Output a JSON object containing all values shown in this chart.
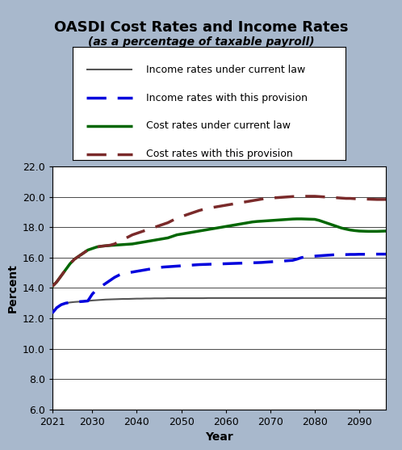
{
  "title": "OASDI Cost Rates and Income Rates",
  "subtitle": "(as a percentage of taxable payroll)",
  "xlabel": "Year",
  "ylabel": "Percent",
  "background_color": "#a8b8cc",
  "plot_bg_color": "#ffffff",
  "ylim": [
    6.0,
    22.0
  ],
  "yticks": [
    6.0,
    8.0,
    10.0,
    12.0,
    14.0,
    16.0,
    18.0,
    20.0,
    22.0
  ],
  "xticks": [
    2021,
    2030,
    2040,
    2050,
    2060,
    2070,
    2080,
    2090
  ],
  "years": [
    2021,
    2022,
    2023,
    2024,
    2025,
    2026,
    2027,
    2028,
    2029,
    2030,
    2031,
    2032,
    2033,
    2034,
    2035,
    2036,
    2037,
    2038,
    2039,
    2040,
    2041,
    2042,
    2043,
    2044,
    2045,
    2046,
    2047,
    2048,
    2049,
    2050,
    2051,
    2052,
    2053,
    2054,
    2055,
    2056,
    2057,
    2058,
    2059,
    2060,
    2061,
    2062,
    2063,
    2064,
    2065,
    2066,
    2067,
    2068,
    2069,
    2070,
    2071,
    2072,
    2073,
    2074,
    2075,
    2076,
    2077,
    2078,
    2079,
    2080,
    2081,
    2082,
    2083,
    2084,
    2085,
    2086,
    2087,
    2088,
    2089,
    2090,
    2091,
    2092,
    2093,
    2094,
    2095,
    2096
  ],
  "income_current_law": [
    12.35,
    12.7,
    12.9,
    13.0,
    13.05,
    13.08,
    13.1,
    13.12,
    13.15,
    13.18,
    13.2,
    13.22,
    13.24,
    13.25,
    13.26,
    13.27,
    13.28,
    13.28,
    13.29,
    13.3,
    13.3,
    13.31,
    13.31,
    13.32,
    13.32,
    13.32,
    13.33,
    13.33,
    13.33,
    13.33,
    13.33,
    13.33,
    13.33,
    13.33,
    13.33,
    13.34,
    13.34,
    13.34,
    13.34,
    13.34,
    13.34,
    13.34,
    13.34,
    13.34,
    13.34,
    13.34,
    13.34,
    13.34,
    13.34,
    13.34,
    13.34,
    13.34,
    13.34,
    13.34,
    13.34,
    13.34,
    13.34,
    13.34,
    13.34,
    13.34,
    13.34,
    13.34,
    13.34,
    13.34,
    13.34,
    13.34,
    13.34,
    13.34,
    13.34,
    13.34,
    13.34,
    13.34,
    13.34,
    13.34,
    13.34,
    13.34
  ],
  "income_provision": [
    12.35,
    12.7,
    12.9,
    13.0,
    13.05,
    13.08,
    13.1,
    13.12,
    13.15,
    13.6,
    13.9,
    14.1,
    14.3,
    14.5,
    14.7,
    14.85,
    14.95,
    15.0,
    15.05,
    15.1,
    15.15,
    15.2,
    15.25,
    15.3,
    15.35,
    15.38,
    15.4,
    15.42,
    15.44,
    15.46,
    15.48,
    15.5,
    15.52,
    15.54,
    15.55,
    15.56,
    15.57,
    15.58,
    15.59,
    15.6,
    15.61,
    15.62,
    15.63,
    15.64,
    15.65,
    15.66,
    15.67,
    15.68,
    15.7,
    15.72,
    15.74,
    15.76,
    15.78,
    15.8,
    15.82,
    15.9,
    16.0,
    16.05,
    16.08,
    16.1,
    16.12,
    16.14,
    16.16,
    16.18,
    16.2,
    16.2,
    16.2,
    16.21,
    16.21,
    16.22,
    16.22,
    16.22,
    16.23,
    16.23,
    16.23,
    16.23
  ],
  "cost_current_law": [
    14.1,
    14.4,
    14.8,
    15.2,
    15.6,
    15.9,
    16.1,
    16.3,
    16.5,
    16.6,
    16.7,
    16.75,
    16.78,
    16.8,
    16.82,
    16.84,
    16.86,
    16.88,
    16.9,
    16.95,
    17.0,
    17.05,
    17.1,
    17.15,
    17.2,
    17.25,
    17.3,
    17.4,
    17.5,
    17.55,
    17.6,
    17.65,
    17.7,
    17.75,
    17.8,
    17.85,
    17.9,
    17.95,
    18.0,
    18.05,
    18.1,
    18.15,
    18.2,
    18.25,
    18.3,
    18.35,
    18.38,
    18.4,
    18.42,
    18.44,
    18.46,
    18.48,
    18.5,
    18.52,
    18.54,
    18.55,
    18.55,
    18.54,
    18.53,
    18.52,
    18.45,
    18.35,
    18.25,
    18.15,
    18.05,
    17.95,
    17.88,
    17.82,
    17.78,
    17.75,
    17.74,
    17.73,
    17.73,
    17.73,
    17.74,
    17.75
  ],
  "cost_provision": [
    14.1,
    14.4,
    14.8,
    15.2,
    15.6,
    15.9,
    16.1,
    16.3,
    16.5,
    16.6,
    16.7,
    16.75,
    16.78,
    16.82,
    16.9,
    17.05,
    17.2,
    17.35,
    17.5,
    17.6,
    17.7,
    17.8,
    17.9,
    18.0,
    18.1,
    18.2,
    18.3,
    18.45,
    18.6,
    18.7,
    18.8,
    18.9,
    19.0,
    19.1,
    19.18,
    19.25,
    19.3,
    19.35,
    19.4,
    19.45,
    19.5,
    19.55,
    19.6,
    19.65,
    19.7,
    19.75,
    19.8,
    19.85,
    19.9,
    19.92,
    19.94,
    19.96,
    19.98,
    20.0,
    20.02,
    20.03,
    20.04,
    20.04,
    20.04,
    20.04,
    20.02,
    20.0,
    19.98,
    19.96,
    19.94,
    19.92,
    19.9,
    19.9,
    19.88,
    19.87,
    19.86,
    19.85,
    19.84,
    19.83,
    19.83,
    19.83
  ],
  "income_current_color": "#555555",
  "income_provision_color": "#0000dd",
  "cost_current_color": "#006600",
  "cost_provision_color": "#7a2a2a",
  "legend_labels": [
    "Income rates under current law",
    "Income rates with this provision",
    "Cost rates under current law",
    "Cost rates with this provision"
  ],
  "title_fontsize": 13,
  "subtitle_fontsize": 10,
  "axis_label_fontsize": 10,
  "tick_fontsize": 9,
  "legend_fontsize": 9
}
